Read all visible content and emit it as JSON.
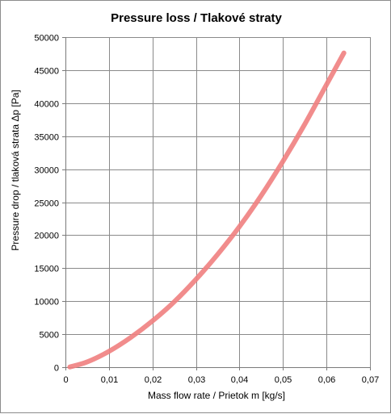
{
  "chart_data": {
    "type": "line",
    "title": "Pressure loss / Tlakové straty",
    "xlabel": "Mass flow rate / Prietok m [kg/s]",
    "ylabel": "Pressure drop / tlaková strata Δp [Pa]",
    "xlim": [
      0,
      0.07
    ],
    "ylim": [
      0,
      50000
    ],
    "x_ticks": [
      "0",
      "0,01",
      "0,02",
      "0,03",
      "0,04",
      "0,05",
      "0,06",
      "0,07"
    ],
    "y_ticks": [
      "0",
      "5000",
      "10000",
      "15000",
      "20000",
      "25000",
      "30000",
      "35000",
      "40000",
      "45000",
      "50000"
    ],
    "grid": true,
    "line_color": "#f08080",
    "series": [
      {
        "x": [
          0.001,
          0.005,
          0.01,
          0.015,
          0.02,
          0.025,
          0.03,
          0.035,
          0.04,
          0.045,
          0.05,
          0.055,
          0.06,
          0.064
        ],
        "values": [
          30,
          800,
          2400,
          4500,
          7000,
          9900,
          13300,
          17100,
          21300,
          26000,
          31200,
          36800,
          42800,
          47600
        ]
      }
    ]
  }
}
